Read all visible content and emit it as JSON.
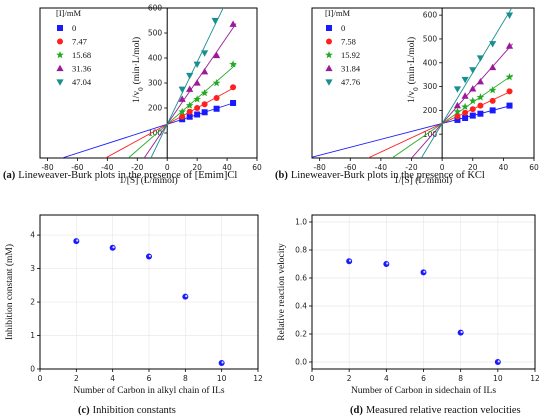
{
  "chart_data": [
    {
      "type": "line",
      "panel": "a",
      "caption_letter": "(a)",
      "caption_text": "Lineweaver-Burk plots in the presence of [Emim]Cl",
      "xlabel": "1/[S] (L/mmol)",
      "ylabel": "1/v",
      "ylabel_sub": "0",
      "ylabel_unit": "(min·L/mol)",
      "xlim": [
        -85,
        60
      ],
      "ylim": [
        0,
        600
      ],
      "xticks": [
        -80,
        -60,
        -40,
        -20,
        0,
        20,
        40,
        60
      ],
      "yticks": [
        100,
        200,
        300,
        400,
        500,
        600
      ],
      "legend_title": "[I]/mM",
      "intercept_y": 135,
      "series": [
        {
          "name": "0",
          "color": "#1a1aff",
          "marker": "square",
          "x": [
            10,
            15,
            20,
            25,
            33,
            44
          ],
          "y": [
            155,
            165,
            174,
            183,
            197,
            220
          ]
        },
        {
          "name": "7.47",
          "color": "#ff2020",
          "marker": "circle",
          "x": [
            10,
            15,
            20,
            25,
            33,
            44
          ],
          "y": [
            165,
            185,
            200,
            215,
            240,
            283
          ]
        },
        {
          "name": "15.68",
          "color": "#22aa22",
          "marker": "star",
          "x": [
            10,
            15,
            20,
            25,
            33,
            44
          ],
          "y": [
            185,
            210,
            235,
            260,
            300,
            375
          ]
        },
        {
          "name": "31.36",
          "color": "#9a1a9a",
          "marker": "triangle-up",
          "x": [
            10,
            15,
            20,
            25,
            33,
            44
          ],
          "y": [
            235,
            275,
            300,
            345,
            410,
            535
          ]
        },
        {
          "name": "47.04",
          "color": "#1a8f8f",
          "marker": "triangle-down",
          "x": [
            10,
            15,
            20,
            25,
            32
          ],
          "y": [
            275,
            330,
            375,
            420,
            550
          ]
        }
      ]
    },
    {
      "type": "line",
      "panel": "b",
      "caption_letter": "(b)",
      "caption_text": "Lineweaver-Burk plots in the presence of KCl",
      "xlabel": "1/[S] (L/mmol)",
      "ylabel": "1/v",
      "ylabel_sub": "0",
      "ylabel_unit": "(min·L/mol)",
      "xlim": [
        -85,
        60
      ],
      "ylim": [
        0,
        630
      ],
      "xticks": [
        -80,
        -60,
        -40,
        -20,
        0,
        20,
        40,
        60
      ],
      "yticks": [
        100,
        200,
        300,
        400,
        500,
        600
      ],
      "legend_title": "[I]/mM",
      "intercept_y": 145,
      "series": [
        {
          "name": "0",
          "color": "#1a1aff",
          "marker": "square",
          "x": [
            10,
            15,
            20,
            25,
            33,
            44
          ],
          "y": [
            160,
            168,
            178,
            186,
            200,
            220
          ]
        },
        {
          "name": "7.58",
          "color": "#ff2020",
          "marker": "circle",
          "x": [
            10,
            15,
            20,
            25,
            33,
            44
          ],
          "y": [
            175,
            190,
            205,
            220,
            240,
            280
          ]
        },
        {
          "name": "15.92",
          "color": "#22aa22",
          "marker": "star",
          "x": [
            10,
            15,
            20,
            25,
            33,
            44
          ],
          "y": [
            195,
            215,
            240,
            255,
            285,
            340
          ]
        },
        {
          "name": "31.84",
          "color": "#9a1a9a",
          "marker": "triangle-up",
          "x": [
            10,
            15,
            20,
            25,
            33,
            44
          ],
          "y": [
            220,
            260,
            290,
            320,
            380,
            470
          ]
        },
        {
          "name": "47.76",
          "color": "#1a8f8f",
          "marker": "triangle-down",
          "x": [
            10,
            15,
            20,
            25,
            33,
            44
          ],
          "y": [
            290,
            330,
            370,
            420,
            480,
            600
          ]
        }
      ]
    },
    {
      "type": "scatter",
      "panel": "c",
      "caption_letter": "(c)",
      "caption_text": "Inhibition constants",
      "xlabel": "Number of Carbon in alkyl chain of ILs",
      "ylabel": "Inhibition constant (mM)",
      "xlim": [
        0,
        12
      ],
      "ylim": [
        0,
        4.6
      ],
      "xticks": [
        0,
        2,
        4,
        6,
        8,
        10,
        12
      ],
      "yticks": [
        0,
        1,
        2,
        3,
        4
      ],
      "ytick_labels": [
        "0",
        "1",
        "2",
        "3",
        "4"
      ],
      "grid": true,
      "color": "#1a1aff",
      "x": [
        2,
        4,
        6,
        8,
        10
      ],
      "y": [
        3.82,
        3.62,
        3.36,
        2.16,
        0.18
      ]
    },
    {
      "type": "scatter",
      "panel": "d",
      "caption_letter": "(d)",
      "caption_text": "Measured relative reaction velocities",
      "xlabel": "Number of Carbon in sidechain of ILs",
      "ylabel": "Relative reaction velocity",
      "xlim": [
        0,
        12
      ],
      "ylim": [
        -0.05,
        1.05
      ],
      "xticks": [
        0,
        2,
        4,
        6,
        8,
        10,
        12
      ],
      "yticks": [
        0,
        0.2,
        0.4,
        0.6,
        0.8,
        1.0
      ],
      "ytick_labels": [
        "0.0",
        "0.2",
        "0.4",
        "0.6",
        "0.8",
        "1.0"
      ],
      "grid": true,
      "color": "#1a1aff",
      "x": [
        2,
        4,
        6,
        8,
        10
      ],
      "y": [
        0.72,
        0.7,
        0.64,
        0.21,
        0.0
      ]
    }
  ]
}
